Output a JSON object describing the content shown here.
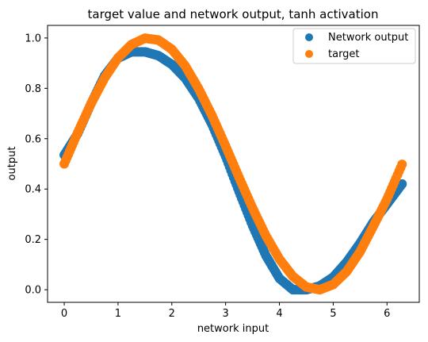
{
  "chart_data": {
    "type": "scatter",
    "title": "target value and network output, tanh activation",
    "xlabel": "network input",
    "ylabel": "output",
    "xlim": [
      -0.31,
      6.6
    ],
    "ylim": [
      -0.05,
      1.05
    ],
    "xticks": [
      0,
      1,
      2,
      3,
      4,
      5,
      6
    ],
    "yticks": [
      0.0,
      0.2,
      0.4,
      0.6,
      0.8,
      1.0
    ],
    "xtick_labels": [
      "0",
      "1",
      "2",
      "3",
      "4",
      "5",
      "6"
    ],
    "ytick_labels": [
      "0.0",
      "0.2",
      "0.4",
      "0.6",
      "0.8",
      "1.0"
    ],
    "grid": false,
    "legend_position": "top-right",
    "series": [
      {
        "name": "Network output",
        "color": "#1f77b4",
        "x": [
          0.0,
          0.25,
          0.5,
          0.75,
          1.0,
          1.25,
          1.5,
          1.75,
          2.0,
          2.25,
          2.5,
          2.75,
          3.0,
          3.25,
          3.5,
          3.75,
          4.0,
          4.25,
          4.5,
          4.75,
          5.0,
          5.25,
          5.5,
          5.75,
          6.0,
          6.28
        ],
        "y": [
          0.535,
          0.62,
          0.74,
          0.85,
          0.92,
          0.945,
          0.945,
          0.93,
          0.895,
          0.84,
          0.76,
          0.655,
          0.53,
          0.39,
          0.255,
          0.135,
          0.045,
          0.0,
          0.0,
          0.015,
          0.05,
          0.11,
          0.185,
          0.27,
          0.34,
          0.42
        ]
      },
      {
        "name": "target",
        "color": "#ff7f0e",
        "x": [
          0.0,
          0.25,
          0.5,
          0.75,
          1.0,
          1.25,
          1.5,
          1.75,
          2.0,
          2.25,
          2.5,
          2.75,
          3.0,
          3.25,
          3.5,
          3.75,
          4.0,
          4.25,
          4.5,
          4.75,
          5.0,
          5.25,
          5.5,
          5.75,
          6.0,
          6.28
        ],
        "y": [
          0.5,
          0.624,
          0.74,
          0.841,
          0.921,
          0.974,
          0.999,
          0.992,
          0.955,
          0.889,
          0.798,
          0.691,
          0.571,
          0.446,
          0.325,
          0.214,
          0.122,
          0.053,
          0.011,
          0.0,
          0.021,
          0.072,
          0.151,
          0.254,
          0.36,
          0.498
        ]
      }
    ]
  }
}
